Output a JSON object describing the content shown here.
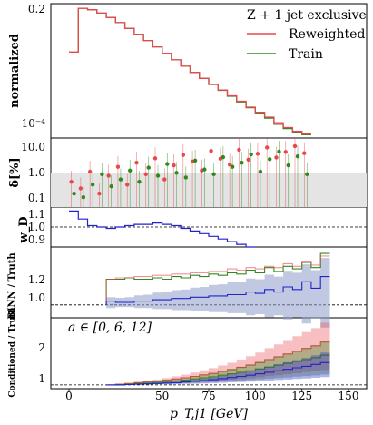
{
  "legend": {
    "title": "Z + 1 jet exclusive",
    "entries": [
      {
        "label": "Reweighted",
        "color": "#e8474c"
      },
      {
        "label": "Train",
        "color": "#2f8a1e"
      }
    ]
  },
  "annotation": "a ∈ [0, 6, 12]",
  "colors": {
    "reweighted": "#e8474c",
    "train": "#2f8a1e",
    "blue": "#2222cc",
    "band": "#8c9cc8",
    "shade": "#e4e4e4"
  },
  "panels": {
    "main": {
      "ylabel": "normalized",
      "yticks": [
        "0.2",
        "10⁻⁴"
      ]
    },
    "delta": {
      "ylabel": "δ[%]",
      "yticks": [
        "10.0",
        "1.0",
        "0.1"
      ]
    },
    "ratio": {
      "ylabel": "w_D",
      "yticks": [
        "1.1",
        "1.0",
        "0.9"
      ]
    },
    "binn": {
      "ylabel": "BINN / Truth",
      "yticks": [
        "1.2",
        "1.0"
      ]
    },
    "cond": {
      "ylabel": "Conditioned / Truth",
      "yticks": [
        "2",
        "1"
      ]
    }
  },
  "xaxis": {
    "label": "p_T,j1 [GeV]",
    "ticks": [
      "0",
      "50",
      "75",
      "100",
      "125",
      "150"
    ]
  },
  "chart_data": [
    {
      "type": "line",
      "panel": "main",
      "ylabel": "normalized",
      "yscale": "log",
      "xlim": [
        0,
        150
      ],
      "ylim": [
        4e-05,
        0.3
      ],
      "x": [
        0,
        5,
        10,
        15,
        20,
        25,
        30,
        35,
        40,
        45,
        50,
        55,
        60,
        65,
        70,
        75,
        80,
        85,
        90,
        95,
        100,
        105,
        110,
        115,
        120,
        125
      ],
      "series": [
        {
          "name": "Train",
          "values": [
            0.012,
            0.22,
            0.2,
            0.16,
            0.12,
            0.085,
            0.058,
            0.039,
            0.026,
            0.017,
            0.011,
            0.0072,
            0.0047,
            0.0031,
            0.0021,
            0.0014,
            0.00095,
            0.00064,
            0.00044,
            0.0003,
            0.00021,
            0.00015,
            0.0001,
            7.5e-05,
            6e-05,
            5e-05
          ]
        },
        {
          "name": "Reweighted",
          "values": [
            0.012,
            0.22,
            0.2,
            0.16,
            0.12,
            0.085,
            0.058,
            0.039,
            0.026,
            0.017,
            0.011,
            0.0072,
            0.0047,
            0.0031,
            0.0021,
            0.0014,
            0.00097,
            0.00066,
            0.00046,
            0.00031,
            0.00022,
            0.00016,
            0.00011,
            8e-05,
            6.2e-05,
            5.2e-05
          ]
        }
      ]
    },
    {
      "type": "scatter",
      "panel": "delta",
      "ylabel": "δ[%]",
      "yscale": "log",
      "ylim": [
        0.07,
        15
      ],
      "x": [
        2,
        7,
        12,
        17,
        22,
        27,
        32,
        37,
        42,
        47,
        52,
        57,
        62,
        67,
        72,
        77,
        82,
        87,
        92,
        97,
        102,
        107,
        112,
        117,
        122,
        127
      ],
      "series": [
        {
          "name": "Reweighted",
          "values": [
            0.5,
            0.3,
            1.1,
            0.2,
            0.8,
            1.6,
            0.4,
            2.2,
            0.9,
            3.1,
            0.6,
            1.8,
            4.0,
            2.4,
            1.2,
            5.5,
            3.0,
            1.9,
            6.0,
            2.8,
            4.4,
            7.2,
            3.3,
            5.1,
            8.0,
            4.6
          ]
        },
        {
          "name": "Train",
          "values": [
            0.2,
            0.15,
            0.4,
            0.9,
            0.35,
            0.6,
            1.2,
            0.5,
            1.5,
            0.8,
            2.0,
            1.0,
            0.7,
            2.6,
            1.3,
            0.9,
            3.4,
            1.6,
            2.2,
            4.2,
            1.1,
            2.9,
            5.2,
            1.8,
            3.6,
            0.9
          ]
        }
      ]
    },
    {
      "type": "line",
      "panel": "ratio",
      "ylabel": "w_D",
      "ylim": [
        0.85,
        1.15
      ],
      "x": [
        0,
        5,
        10,
        15,
        20,
        25,
        30,
        35,
        40,
        45,
        50,
        55,
        60,
        65,
        70,
        75,
        80,
        85,
        90,
        95
      ],
      "series": [
        {
          "name": "w_D",
          "values": [
            1.12,
            1.06,
            1.01,
            1.0,
            0.99,
            1.0,
            1.01,
            1.02,
            1.02,
            1.03,
            1.02,
            1.01,
            0.99,
            0.97,
            0.95,
            0.93,
            0.91,
            0.89,
            0.87,
            0.85
          ]
        }
      ]
    },
    {
      "type": "line",
      "panel": "binn",
      "ylabel": "BINN / Truth",
      "ylim": [
        0.9,
        1.45
      ],
      "x": [
        20,
        25,
        30,
        35,
        40,
        45,
        50,
        55,
        60,
        65,
        70,
        75,
        80,
        85,
        90,
        95,
        100,
        105,
        110,
        115,
        120,
        125,
        130,
        135
      ],
      "series": [
        {
          "name": "Train",
          "values": [
            1.2,
            1.2,
            1.21,
            1.2,
            1.2,
            1.21,
            1.2,
            1.22,
            1.21,
            1.23,
            1.22,
            1.24,
            1.23,
            1.25,
            1.24,
            1.27,
            1.25,
            1.29,
            1.26,
            1.3,
            1.28,
            1.33,
            1.29,
            1.4
          ]
        },
        {
          "name": "Reweighted",
          "values": [
            1.2,
            1.21,
            1.21,
            1.22,
            1.22,
            1.23,
            1.23,
            1.24,
            1.24,
            1.25,
            1.25,
            1.26,
            1.26,
            1.28,
            1.27,
            1.29,
            1.28,
            1.3,
            1.29,
            1.32,
            1.3,
            1.34,
            1.31,
            1.38
          ]
        },
        {
          "name": "BINN",
          "values": [
            1.03,
            1.02,
            1.02,
            1.03,
            1.03,
            1.04,
            1.04,
            1.05,
            1.05,
            1.06,
            1.06,
            1.07,
            1.07,
            1.08,
            1.08,
            1.1,
            1.09,
            1.12,
            1.1,
            1.14,
            1.12,
            1.18,
            1.13,
            1.22
          ]
        }
      ]
    },
    {
      "type": "line",
      "panel": "cond",
      "ylabel": "Conditioned / Truth",
      "ylim": [
        0.9,
        2.8
      ],
      "x": [
        20,
        25,
        30,
        35,
        40,
        45,
        50,
        55,
        60,
        65,
        70,
        75,
        80,
        85,
        90,
        95,
        100,
        105,
        110,
        115,
        120,
        125,
        130,
        135
      ],
      "series": [
        {
          "name": "Reweighted",
          "values": [
            1.0,
            1.02,
            1.04,
            1.06,
            1.08,
            1.1,
            1.13,
            1.16,
            1.19,
            1.23,
            1.27,
            1.31,
            1.36,
            1.41,
            1.47,
            1.53,
            1.6,
            1.68,
            1.75,
            1.83,
            1.9,
            1.98,
            2.05,
            2.15
          ]
        },
        {
          "name": "Train",
          "values": [
            1.0,
            1.01,
            1.02,
            1.04,
            1.05,
            1.07,
            1.09,
            1.11,
            1.13,
            1.16,
            1.19,
            1.22,
            1.26,
            1.3,
            1.34,
            1.38,
            1.43,
            1.48,
            1.53,
            1.58,
            1.63,
            1.68,
            1.73,
            1.8
          ]
        },
        {
          "name": "Truth",
          "values": [
            1.0,
            1.0,
            1.01,
            1.02,
            1.03,
            1.04,
            1.05,
            1.06,
            1.08,
            1.1,
            1.12,
            1.14,
            1.17,
            1.2,
            1.23,
            1.26,
            1.3,
            1.34,
            1.38,
            1.42,
            1.46,
            1.5,
            1.55,
            1.6
          ]
        }
      ]
    }
  ]
}
